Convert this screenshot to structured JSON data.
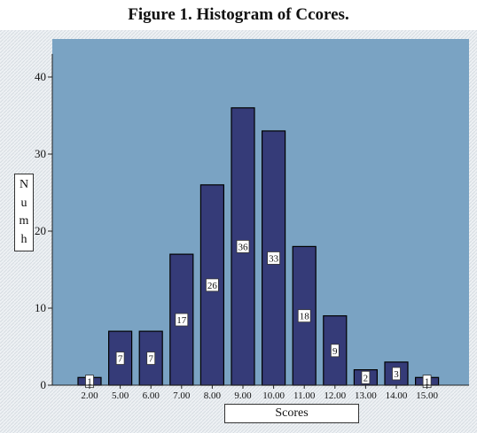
{
  "figure": {
    "title": "Figure 1. Histogram of Ccores."
  },
  "chart_data": {
    "type": "bar",
    "title": "Figure 1. Histogram of Ccores.",
    "xlabel": "Scores",
    "ylabel": "Numh",
    "categories": [
      "2.00",
      "5.00",
      "6.00",
      "7.00",
      "8.00",
      "9.00",
      "10.00",
      "11.00",
      "12.00",
      "13.00",
      "14.00",
      "15.00"
    ],
    "values": [
      1,
      7,
      7,
      17,
      26,
      36,
      33,
      18,
      9,
      2,
      3,
      1
    ],
    "data_labels": [
      "1",
      "7",
      "7",
      "17",
      "26",
      "36",
      "33",
      "18",
      "9",
      "2",
      "3",
      "1"
    ],
    "ylim": [
      0,
      43
    ],
    "yticks": [
      0,
      10,
      20,
      30,
      40
    ],
    "ytick_labels": [
      "0",
      "10",
      "20",
      "30",
      "40"
    ],
    "grid": false,
    "colors": {
      "bar": "#353b78",
      "plot_bg": "#7aa3c3",
      "outer_bg": "#e8ecf0"
    }
  }
}
